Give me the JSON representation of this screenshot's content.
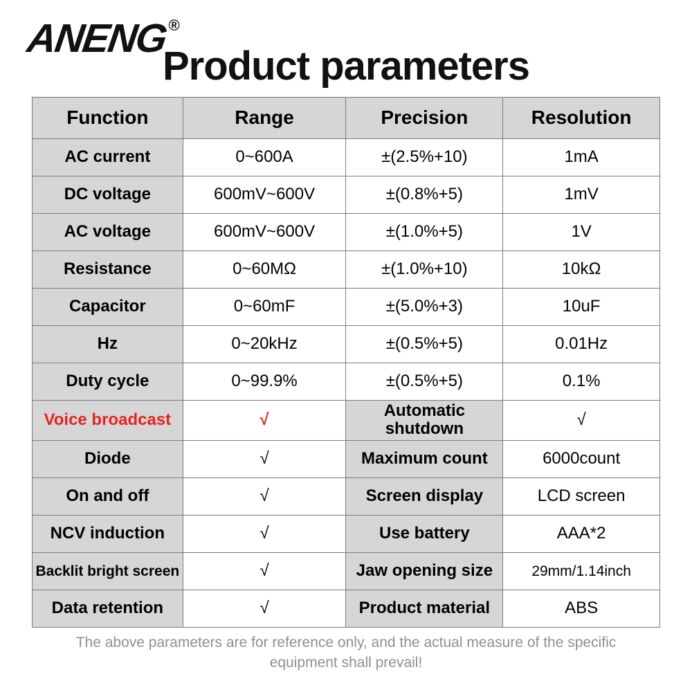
{
  "logo": {
    "text": "ANENG",
    "reg": "®"
  },
  "title": "Product parameters",
  "colors": {
    "header_bg": "#d6d6d6",
    "shaded_bg": "#d6d6d6",
    "border": "#7a7a7a",
    "red": "#e52421",
    "footer": "#8f8f8f",
    "text": "#111111",
    "page_bg": "#ffffff"
  },
  "table": {
    "type": "table",
    "columns": [
      "Function",
      "Range",
      "Precision",
      "Resolution"
    ],
    "col_widths_pct": [
      24,
      26,
      25,
      25
    ],
    "header_fontsize": 28,
    "cell_fontsize": 24,
    "rows": [
      {
        "c1": "AC current",
        "c2": "0~600A",
        "c3": "±(2.5%+10)",
        "c4": "1mA"
      },
      {
        "c1": "DC voltage",
        "c2": "600mV~600V",
        "c3": "±(0.8%+5)",
        "c4": "1mV"
      },
      {
        "c1": "AC voltage",
        "c2": "600mV~600V",
        "c3": "±(1.0%+5)",
        "c4": "1V"
      },
      {
        "c1": "Resistance",
        "c2": "0~60MΩ",
        "c3": "±(1.0%+10)",
        "c4": "10kΩ"
      },
      {
        "c1": "Capacitor",
        "c2": "0~60mF",
        "c3": "±(5.0%+3)",
        "c4": "10uF"
      },
      {
        "c1": "Hz",
        "c2": "0~20kHz",
        "c3": "±(0.5%+5)",
        "c4": "0.01Hz"
      },
      {
        "c1": "Duty cycle",
        "c2": "0~99.9%",
        "c3": "±(0.5%+5)",
        "c4": "0.1%"
      },
      {
        "c1": "Voice broadcast",
        "c2": "√",
        "c1_red": true,
        "c2_red": true,
        "c3_shaded": true,
        "c3": "Automatic shutdown",
        "c4": "√"
      },
      {
        "c1": "Diode",
        "c2": "√",
        "c3_shaded": true,
        "c3": "Maximum count",
        "c4": "6000count"
      },
      {
        "c1": "On and off",
        "c2": "√",
        "c3_shaded": true,
        "c3": "Screen display",
        "c4": "LCD screen"
      },
      {
        "c1": "NCV induction",
        "c2": "√",
        "c3_shaded": true,
        "c3": "Use battery",
        "c4": "AAA*2"
      },
      {
        "c1": "Backlit bright screen",
        "c1_small": true,
        "c2": "√",
        "c3_shaded": true,
        "c3": "Jaw opening size",
        "c4": "29mm/1.14inch",
        "c4_small": true
      },
      {
        "c1": "Data retention",
        "c2": "√",
        "c3_shaded": true,
        "c3": "Product material",
        "c4": "ABS"
      }
    ]
  },
  "footer": "The above parameters are for reference only, and the actual measure of the specific equipment shall prevail!"
}
